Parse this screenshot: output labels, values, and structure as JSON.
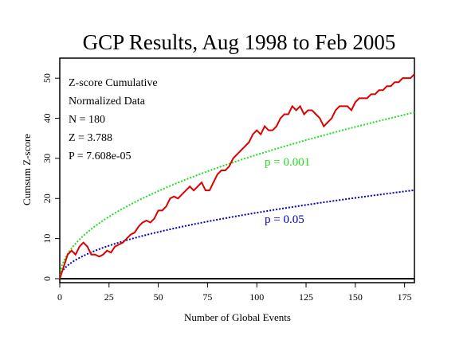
{
  "chart_data": {
    "type": "line",
    "title": "GCP Results, Aug 1998 to Feb 2005",
    "xlabel": "Number of Global Events",
    "ylabel": "Cumsum Z-score",
    "xlim": [
      0,
      180
    ],
    "ylim": [
      -1,
      55
    ],
    "xticks": [
      0,
      25,
      50,
      75,
      100,
      125,
      150,
      175
    ],
    "yticks": [
      0,
      10,
      20,
      30,
      40,
      50
    ],
    "stats": [
      "Z-score Cumulative",
      "Normalized Data",
      "N = 180",
      "Z = 3.788",
      "P = 7.608e-05"
    ],
    "series": [
      {
        "color": "#dd0000",
        "x": [
          0,
          2,
          4,
          6,
          8,
          10,
          12,
          14,
          16,
          18,
          20,
          22,
          24,
          26,
          28,
          30,
          32,
          34,
          36,
          38,
          40,
          42,
          44,
          46,
          48,
          50,
          52,
          54,
          56,
          58,
          60,
          62,
          64,
          66,
          68,
          70,
          72,
          74,
          76,
          78,
          80,
          82,
          84,
          86,
          88,
          90,
          92,
          94,
          96,
          98,
          100,
          102,
          104,
          106,
          108,
          110,
          112,
          114,
          116,
          118,
          120,
          122,
          124,
          126,
          128,
          130,
          132,
          134,
          136,
          138,
          140,
          142,
          144,
          146,
          148,
          150,
          152,
          154,
          156,
          158,
          160,
          162,
          164,
          166,
          168,
          170,
          172,
          174,
          176,
          178,
          180
        ],
        "values": [
          0,
          3,
          6,
          7,
          6,
          8,
          9,
          8,
          6,
          6,
          5.5,
          6,
          7,
          6.5,
          8,
          8.5,
          9,
          10,
          11,
          11.5,
          13,
          14,
          14.5,
          14,
          15,
          17,
          17,
          18,
          20,
          20.5,
          20,
          21,
          22,
          23,
          22,
          23,
          24,
          22,
          22,
          24,
          26,
          27,
          27,
          28,
          30,
          31,
          32,
          33,
          34,
          36,
          37,
          36,
          38,
          37,
          37,
          38,
          40,
          41,
          41,
          43,
          42,
          43,
          41,
          42,
          42,
          41,
          40,
          38,
          39,
          40,
          42,
          43,
          43,
          43,
          42,
          44,
          45,
          45,
          45,
          46,
          46,
          47,
          47,
          48,
          48,
          49,
          49,
          50,
          50,
          50,
          51
        ]
      },
      {
        "label": "p = 0.001",
        "color": "#22dd22",
        "dashed": true,
        "z": 3.09
      },
      {
        "label": "p = 0.05",
        "color": "#0000bb",
        "dashed": true,
        "z": 1.645
      }
    ]
  }
}
